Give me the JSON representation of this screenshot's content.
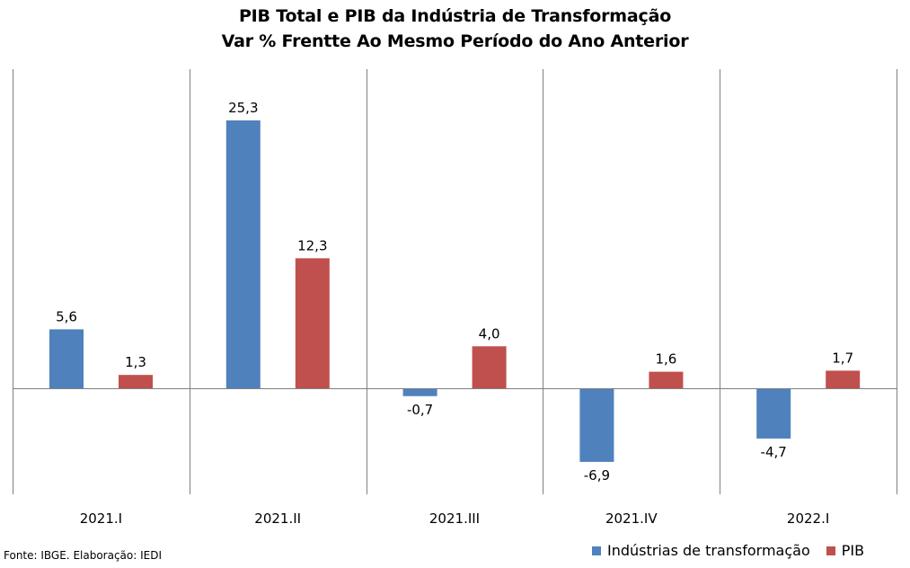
{
  "title": "PIB Total e PIB da Indústria de Transformação",
  "subtitle": "Var % Frentte Ao Mesmo Período do Ano Anterior",
  "source": "Fonte: IBGE. Elaboração: IEDI",
  "colors": {
    "industria": "#4F81BD",
    "pib": "#C0504D",
    "axis": "#808080"
  },
  "chart_data": {
    "type": "bar",
    "title": "PIB Total e PIB da Indústria de Transformação",
    "subtitle": "Var % Frentte Ao Mesmo Período do Ano Anterior",
    "categories": [
      "2021.I",
      "2021.II",
      "2021.III",
      "2021.IV",
      "2022.I"
    ],
    "series": [
      {
        "name": "Indústrias de transformação",
        "values": [
          5.6,
          25.3,
          -0.7,
          -6.9,
          -4.7
        ],
        "labels": [
          "5,6",
          "25,3",
          "-0,7",
          "-6,9",
          "-4,7"
        ]
      },
      {
        "name": "PIB",
        "values": [
          1.3,
          12.3,
          4.0,
          1.6,
          1.7
        ],
        "labels": [
          "1,3",
          "12,3",
          "4,0",
          "1,6",
          "1,7"
        ]
      }
    ],
    "xlabel": "",
    "ylabel": "",
    "ylim": [
      -10,
      30
    ],
    "grid": false,
    "legend": "bottom-right"
  }
}
